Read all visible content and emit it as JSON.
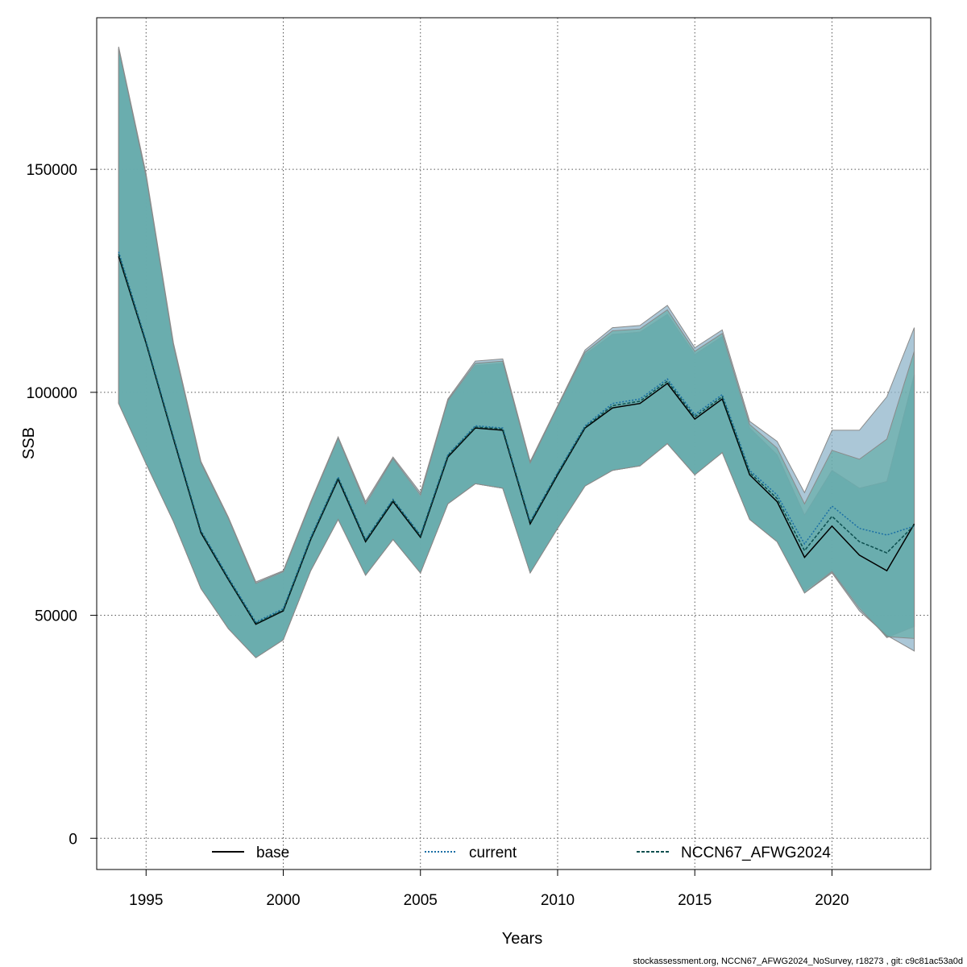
{
  "chart_data": {
    "type": "line",
    "title": "",
    "xlabel": "Years",
    "ylabel": "SSB",
    "xlim": [
      1993.2,
      2023.6
    ],
    "ylim": [
      -7000,
      184000
    ],
    "grid": true,
    "x_ticks": [
      1995,
      2000,
      2005,
      2010,
      2015,
      2020
    ],
    "x_tick_labels": [
      "1995",
      "2000",
      "2005",
      "2010",
      "2015",
      "2020"
    ],
    "y_ticks": [
      0,
      50000,
      100000,
      150000
    ],
    "y_tick_labels": [
      "0",
      "50000",
      "100000",
      "150000"
    ],
    "x": [
      1994,
      1995,
      1996,
      1997,
      1998,
      1999,
      2000,
      2001,
      2002,
      2003,
      2004,
      2005,
      2006,
      2007,
      2008,
      2009,
      2010,
      2011,
      2012,
      2013,
      2014,
      2015,
      2016,
      2017,
      2018,
      2019,
      2020,
      2021,
      2022,
      2023
    ],
    "series": [
      {
        "name": "base",
        "line_style": "solid",
        "color": "#000000",
        "band_color": "#4da6a6",
        "values": [
          130500,
          111000,
          89500,
          68500,
          58000,
          48000,
          51000,
          67000,
          80500,
          66500,
          75500,
          67500,
          85500,
          92000,
          91500,
          70500,
          81500,
          92000,
          96500,
          97500,
          102000,
          94000,
          98500,
          81500,
          75500,
          63000,
          70000,
          63500,
          60000,
          70500
        ],
        "lower": [
          97500,
          84000,
          71000,
          56000,
          47000,
          40500,
          44500,
          60000,
          71500,
          59000,
          67000,
          59500,
          75000,
          79500,
          78500,
          59500,
          69500,
          79000,
          82500,
          83500,
          88500,
          81500,
          86500,
          71500,
          66500,
          55500,
          60000,
          52000,
          45000,
          47500
        ],
        "upper": [
          177000,
          148000,
          110000,
          84000,
          71500,
          57000,
          59500,
          75000,
          89500,
          74500,
          85000,
          76500,
          98000,
          106000,
          106500,
          84000,
          96500,
          108500,
          113000,
          113500,
          117500,
          108500,
          112500,
          92000,
          86000,
          72500,
          82500,
          78500,
          80000,
          104000
        ]
      },
      {
        "name": "current",
        "line_style": "dotted",
        "color": "#1a6fa5",
        "band_color": "#8fb4c9",
        "values": [
          131500,
          111500,
          90000,
          69000,
          58500,
          48500,
          51500,
          67500,
          81000,
          67000,
          76000,
          68000,
          86000,
          92500,
          92000,
          71000,
          82000,
          92500,
          97500,
          98500,
          103000,
          95000,
          99500,
          82500,
          77000,
          66000,
          74500,
          69500,
          68000,
          70000
        ],
        "lower": [
          97500,
          84000,
          71000,
          56000,
          47000,
          40500,
          44500,
          60000,
          71500,
          59000,
          67000,
          59500,
          75000,
          79500,
          78500,
          59500,
          69500,
          79000,
          82500,
          83500,
          88500,
          81500,
          86500,
          71500,
          66500,
          55000,
          59500,
          51000,
          45500,
          42000
        ],
        "upper": [
          177500,
          149000,
          111000,
          84500,
          72000,
          57500,
          60000,
          75500,
          90000,
          75500,
          85500,
          77500,
          98500,
          107000,
          107500,
          84500,
          97000,
          109500,
          114500,
          115000,
          119500,
          110000,
          114000,
          93500,
          89000,
          77500,
          91500,
          91500,
          99000,
          114500
        ]
      },
      {
        "name": "NCCN67_AFWG2024",
        "line_style": "dashed",
        "color": "#0d4f4f",
        "band_color": "#5aa8a0",
        "values": [
          131000,
          111200,
          89800,
          68800,
          58200,
          48200,
          51200,
          67200,
          80800,
          66800,
          75800,
          67800,
          85800,
          92200,
          91800,
          70800,
          81800,
          92200,
          97000,
          98000,
          102500,
          94500,
          99000,
          82000,
          76200,
          64500,
          72200,
          66500,
          64000,
          70200
        ],
        "lower": [
          97500,
          84000,
          71000,
          56000,
          47000,
          40500,
          44500,
          60000,
          71500,
          59000,
          67000,
          59500,
          75000,
          79500,
          78500,
          59500,
          69500,
          79000,
          82500,
          83500,
          88500,
          81500,
          86500,
          71500,
          66500,
          55000,
          59800,
          51500,
          45200,
          44800
        ],
        "upper": [
          177200,
          148500,
          110500,
          84200,
          71800,
          57200,
          59800,
          75200,
          89800,
          75000,
          85200,
          77000,
          98200,
          106500,
          107000,
          84200,
          96800,
          109000,
          113800,
          114200,
          118500,
          109200,
          113200,
          92800,
          87500,
          75000,
          87000,
          85000,
          89500,
          109200
        ]
      }
    ],
    "legend": {
      "placement": "bottom",
      "entries": [
        "base",
        "current",
        "NCCN67_AFWG2024"
      ]
    }
  },
  "footer": "stockassessment.org, NCCN67_AFWG2024_NoSurvey, r18273 , git: c9c81ac53a0d"
}
